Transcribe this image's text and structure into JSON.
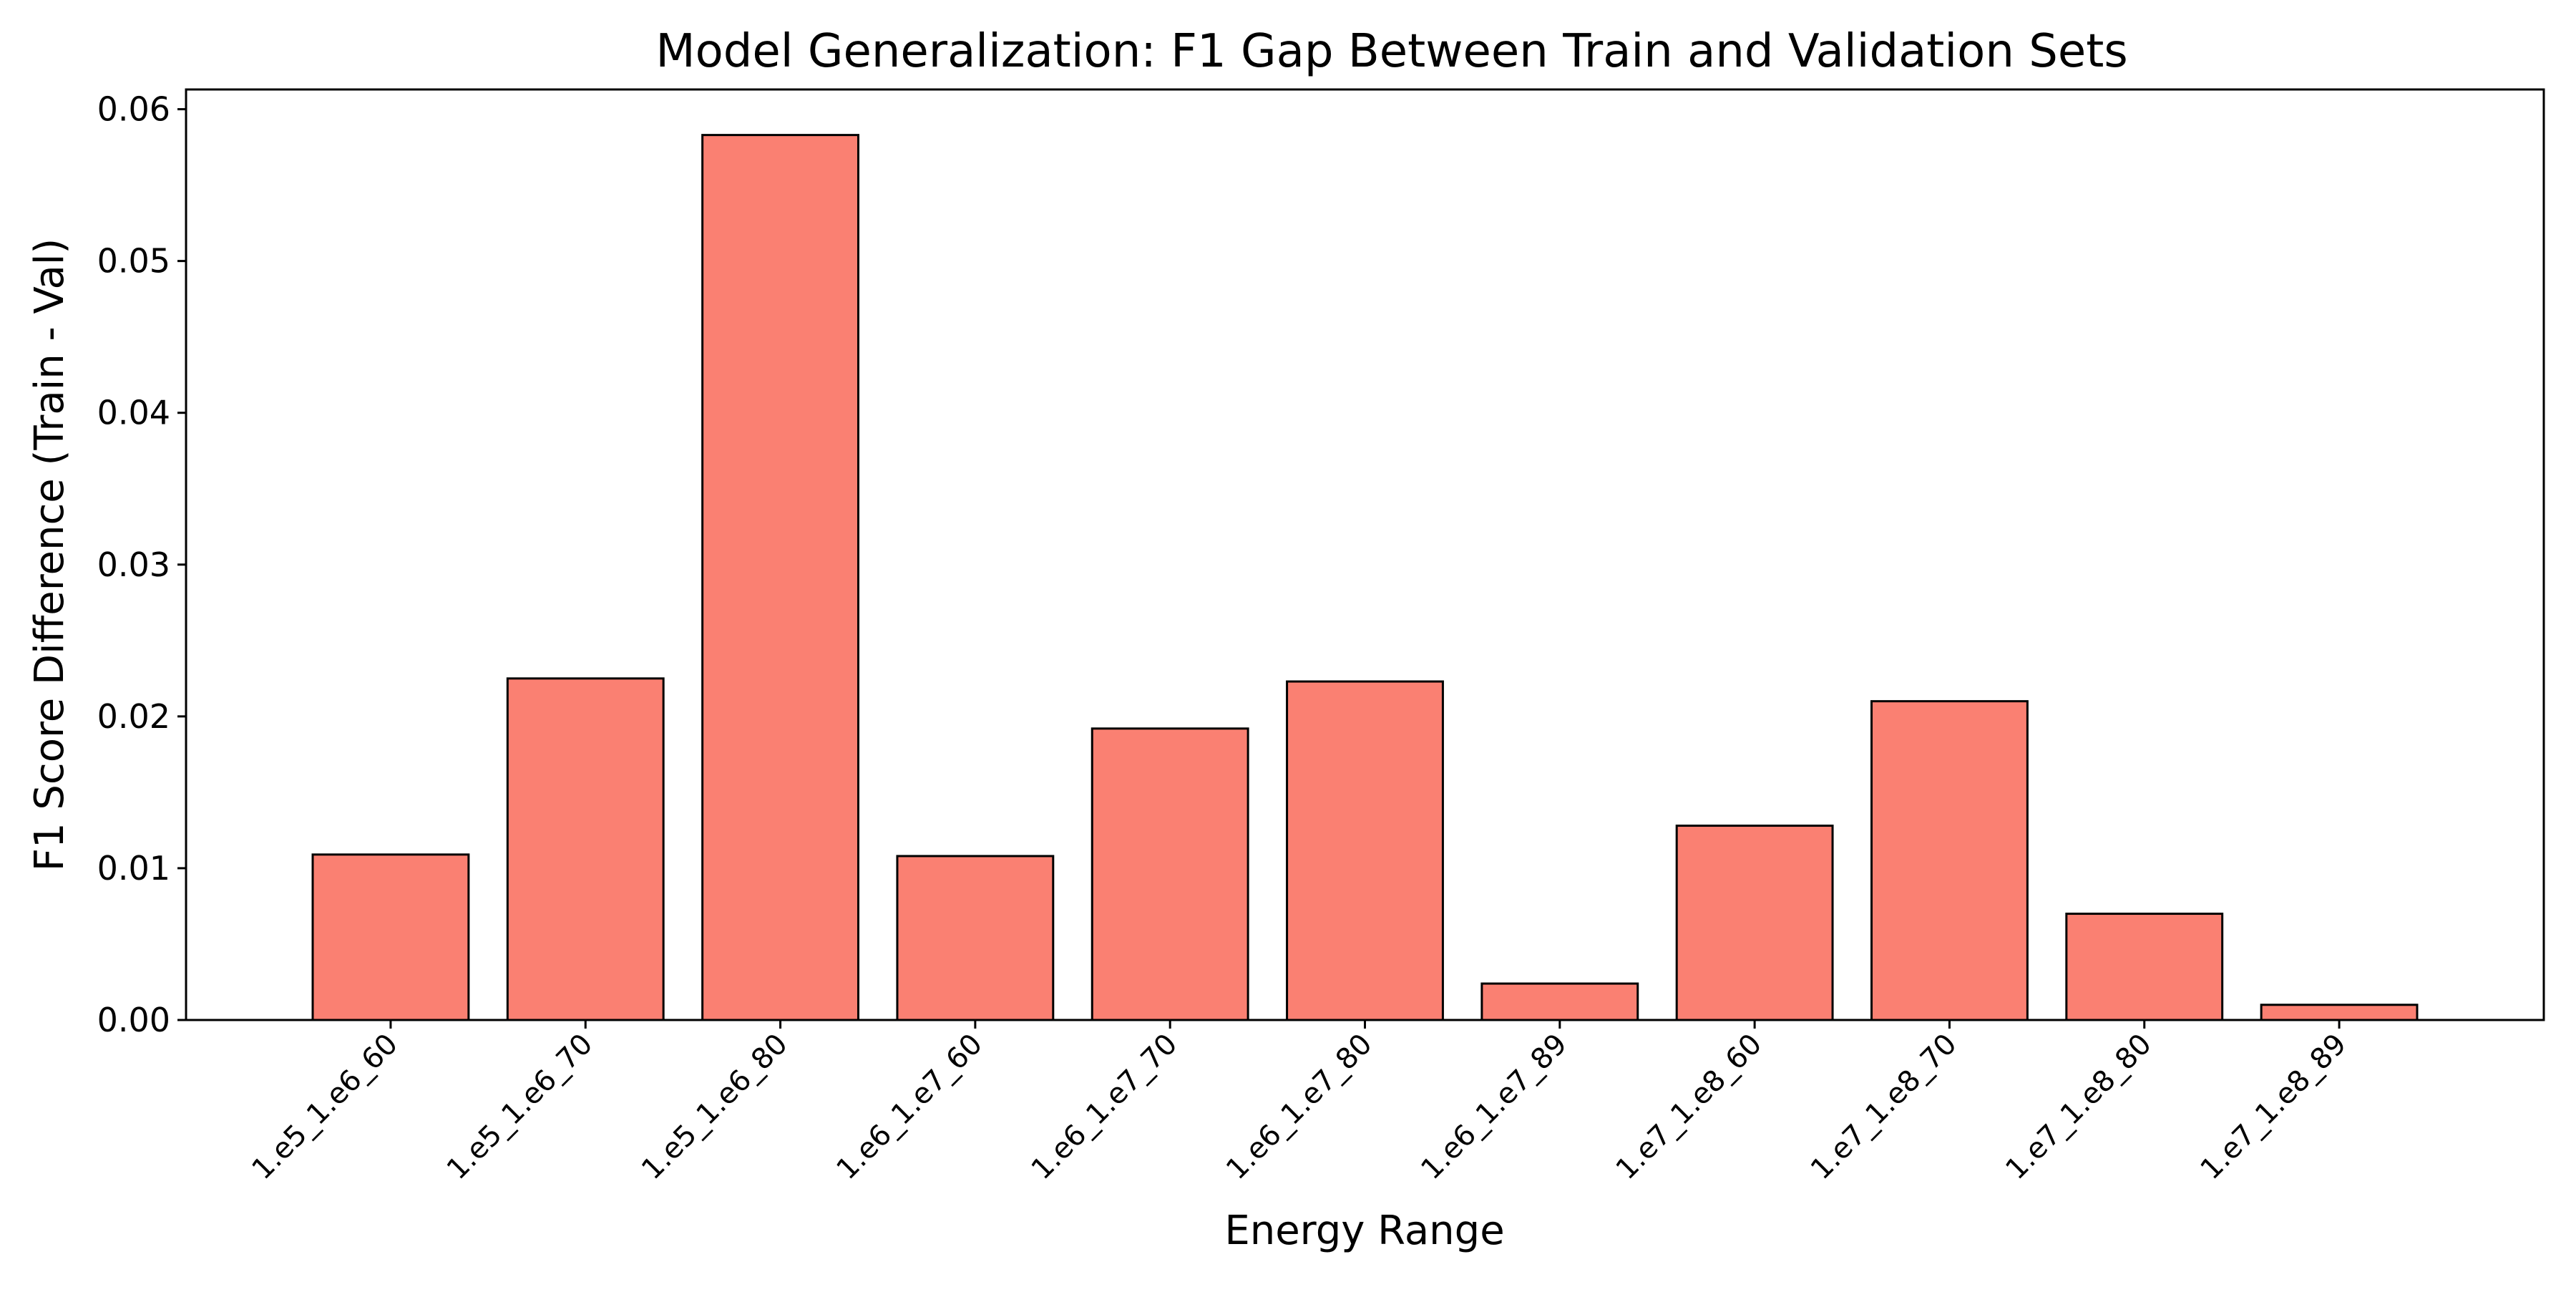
{
  "chart_data": {
    "type": "bar",
    "title": "Model Generalization: F1 Gap Between Train and Validation Sets",
    "xlabel": "Energy Range",
    "ylabel": "F1 Score Difference (Train - Val)",
    "categories": [
      "1.e5_1.e6_60",
      "1.e5_1.e6_70",
      "1.e5_1.e6_80",
      "1.e6_1.e7_60",
      "1.e6_1.e7_70",
      "1.e6_1.e7_80",
      "1.e6_1.e7_89",
      "1.e7_1.e8_60",
      "1.e7_1.e8_70",
      "1.e7_1.e8_80",
      "1.e7_1.e8_89"
    ],
    "values": [
      0.0109,
      0.0225,
      0.0583,
      0.0108,
      0.0192,
      0.0223,
      0.0024,
      0.0128,
      0.021,
      0.007,
      0.001
    ],
    "ylim": [
      0,
      0.0613
    ],
    "yticks": [
      0.0,
      0.01,
      0.02,
      0.03,
      0.04,
      0.05,
      0.06
    ],
    "ytick_labels": [
      "0.00",
      "0.01",
      "0.02",
      "0.03",
      "0.04",
      "0.05",
      "0.06"
    ],
    "bar_color": "#fa8072",
    "bar_edge_color": "#000000",
    "grid": false,
    "legend": "none"
  }
}
